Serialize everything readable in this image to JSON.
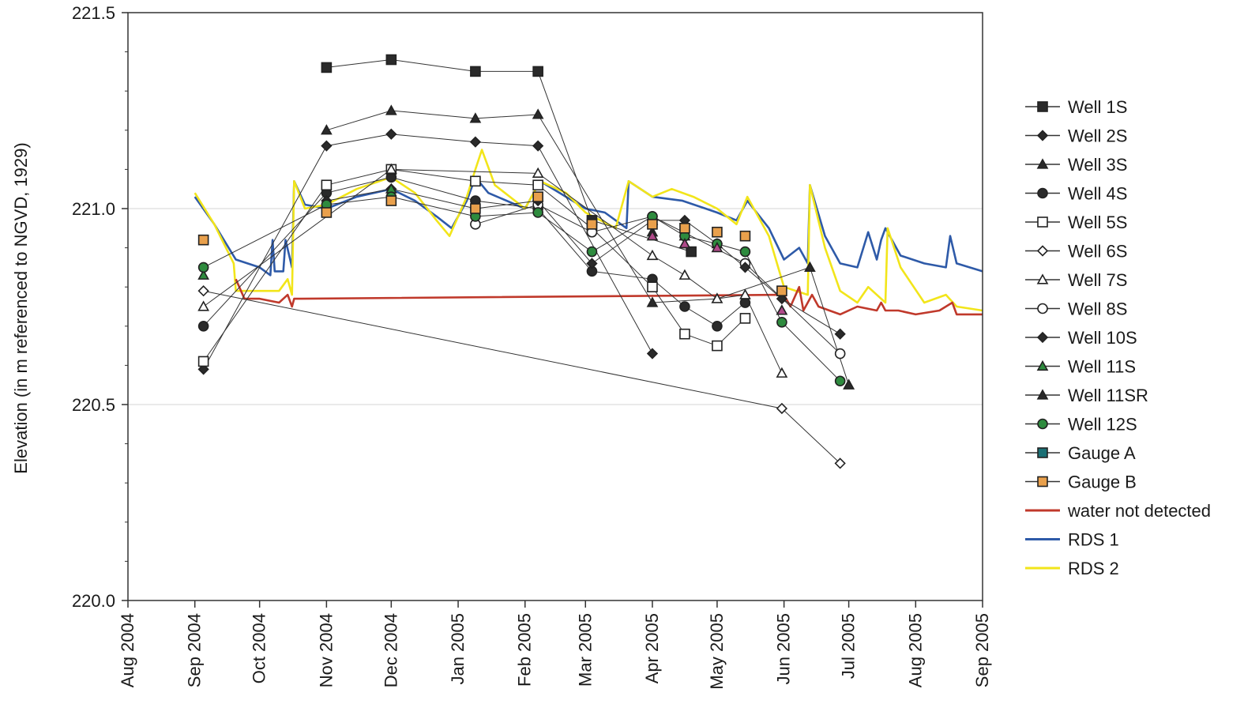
{
  "chart_data": {
    "type": "line",
    "title": "",
    "xlabel": "",
    "ylabel": "Elevation (in m referenced to NGVD, 1929)",
    "xlim": [
      "2004-08-01",
      "2005-09-01"
    ],
    "ylim": [
      220.0,
      221.5
    ],
    "y_ticks": [
      "220.0",
      "220.5",
      "221.0",
      "221.5"
    ],
    "x_ticks": [
      "Aug 2004",
      "Sep 2004",
      "Oct 2004",
      "Nov 2004",
      "Dec 2004",
      "Jan 2005",
      "Feb 2005",
      "Mar 2005",
      "Apr 2005",
      "May 2005",
      "Jun 2005",
      "Jul 2005",
      "Aug 2005",
      "Sep 2005"
    ],
    "x_tick_dates": [
      "2004-08-01",
      "2004-09-01",
      "2004-10-01",
      "2004-11-01",
      "2004-12-01",
      "2005-01-01",
      "2005-02-01",
      "2005-03-01",
      "2005-04-01",
      "2005-05-01",
      "2005-06-01",
      "2005-07-01",
      "2005-08-01",
      "2005-09-01"
    ],
    "grid": "horizontal",
    "legend": "right",
    "well_series": [
      {
        "name": "Well 1S",
        "marker": "square",
        "fill": "#2a2a2a",
        "connected": true,
        "points": [
          [
            "2004-11-01",
            221.36
          ],
          [
            "2004-12-01",
            221.38
          ],
          [
            "2005-01-09",
            221.35
          ],
          [
            "2005-02-07",
            221.35
          ],
          [
            "2005-03-04",
            220.97
          ],
          [
            "2005-04-19",
            220.89
          ]
        ]
      },
      {
        "name": "Well 2S",
        "marker": "diamond",
        "fill": "#2a2a2a",
        "connected": true,
        "points": [
          [
            "2004-09-05",
            220.59
          ],
          [
            "2004-11-01",
            221.16
          ],
          [
            "2004-12-01",
            221.19
          ],
          [
            "2005-01-09",
            221.17
          ],
          [
            "2005-02-07",
            221.16
          ],
          [
            "2005-04-01",
            220.63
          ]
        ]
      },
      {
        "name": "Well 3S",
        "marker": "triangle",
        "fill": "#2a2a2a",
        "connected": true,
        "points": [
          [
            "2004-11-01",
            221.2
          ],
          [
            "2004-12-01",
            221.25
          ],
          [
            "2005-01-09",
            221.23
          ],
          [
            "2005-02-07",
            221.24
          ],
          [
            "2005-04-01",
            220.76
          ],
          [
            "2005-05-01",
            220.77
          ],
          [
            "2005-06-13",
            220.85
          ],
          [
            "2005-07-01",
            220.55
          ]
        ]
      },
      {
        "name": "Well 4S",
        "marker": "circle",
        "fill": "#2a2a2a",
        "connected": true,
        "points": [
          [
            "2004-09-05",
            220.7
          ],
          [
            "2004-11-01",
            221.04
          ],
          [
            "2004-12-01",
            221.08
          ],
          [
            "2005-01-09",
            221.02
          ],
          [
            "2005-02-07",
            221.0
          ],
          [
            "2005-03-04",
            220.84
          ],
          [
            "2005-04-01",
            220.82
          ],
          [
            "2005-04-16",
            220.75
          ],
          [
            "2005-05-01",
            220.7
          ],
          [
            "2005-05-14",
            220.76
          ]
        ]
      },
      {
        "name": "Well 5S",
        "marker": "square",
        "fill": "#ffffff",
        "connected": true,
        "points": [
          [
            "2004-09-05",
            220.61
          ],
          [
            "2004-11-01",
            221.06
          ],
          [
            "2004-12-01",
            221.1
          ],
          [
            "2005-01-09",
            221.07
          ],
          [
            "2005-02-07",
            221.06
          ],
          [
            "2005-03-04",
            220.95
          ],
          [
            "2005-04-01",
            220.8
          ],
          [
            "2005-04-16",
            220.68
          ],
          [
            "2005-05-01",
            220.65
          ],
          [
            "2005-05-14",
            220.72
          ]
        ]
      },
      {
        "name": "Well 6S",
        "marker": "diamond",
        "fill": "#ffffff",
        "connected": true,
        "points": [
          [
            "2004-09-05",
            220.79
          ],
          [
            "2005-05-31",
            220.49
          ],
          [
            "2005-06-27",
            220.35
          ]
        ]
      },
      {
        "name": "Well 7S",
        "marker": "triangle",
        "fill": "#ffffff",
        "connected": true,
        "points": [
          [
            "2004-09-05",
            220.75
          ],
          [
            "2004-12-01",
            221.1
          ],
          [
            "2005-02-07",
            221.09
          ],
          [
            "2005-04-01",
            220.88
          ],
          [
            "2005-04-16",
            220.83
          ],
          [
            "2005-05-01",
            220.77
          ],
          [
            "2005-05-14",
            220.78
          ],
          [
            "2005-05-31",
            220.58
          ]
        ]
      },
      {
        "name": "Well 8S",
        "marker": "circle",
        "fill": "#ffffff",
        "connected": true,
        "points": [
          [
            "2005-01-09",
            220.96
          ],
          [
            "2005-02-07",
            221.01
          ],
          [
            "2005-03-04",
            220.94
          ],
          [
            "2005-04-01",
            220.98
          ],
          [
            "2005-05-14",
            220.86
          ],
          [
            "2005-06-27",
            220.63
          ]
        ]
      },
      {
        "name": "Well 10S",
        "marker": "diamond",
        "fill": "#2a2a2a",
        "connected": true,
        "points": [
          [
            "2004-11-01",
            221.02
          ],
          [
            "2004-12-01",
            221.05
          ],
          [
            "2005-01-09",
            221.0
          ],
          [
            "2005-02-07",
            221.02
          ],
          [
            "2005-03-04",
            220.86
          ],
          [
            "2005-04-01",
            220.97
          ],
          [
            "2005-04-16",
            220.97
          ],
          [
            "2005-05-01",
            220.91
          ],
          [
            "2005-05-14",
            220.85
          ],
          [
            "2005-05-31",
            220.77
          ],
          [
            "2005-06-27",
            220.68
          ]
        ]
      },
      {
        "name": "Well 11S",
        "marker": "triangle",
        "fill": "#2e8b3e",
        "connected": false,
        "points": [
          [
            "2004-09-05",
            220.83
          ],
          [
            "2004-12-01",
            221.05
          ],
          [
            "2005-04-01",
            220.97
          ],
          [
            "2005-04-16",
            220.93
          ]
        ]
      },
      {
        "name": "Well 11SR",
        "marker": "triangle",
        "fill": "#2a2a2a",
        "connected": false,
        "points": [
          [
            "2005-04-01",
            220.94
          ],
          [
            "2005-04-16",
            220.91
          ],
          [
            "2005-05-01",
            220.91
          ],
          [
            "2005-05-31",
            220.74
          ],
          [
            "2005-07-01",
            220.55
          ]
        ]
      },
      {
        "name": "Well 12S",
        "marker": "circle",
        "fill": "#2e8b3e",
        "connected": true,
        "points": [
          [
            "2004-09-05",
            220.85
          ],
          [
            "2004-11-01",
            221.01
          ],
          [
            "2004-12-01",
            221.03
          ],
          [
            "2005-01-09",
            220.98
          ],
          [
            "2005-02-07",
            220.99
          ],
          [
            "2005-03-04",
            220.89
          ],
          [
            "2005-04-01",
            220.98
          ],
          [
            "2005-04-16",
            220.93
          ],
          [
            "2005-05-01",
            220.91
          ],
          [
            "2005-05-14",
            220.89
          ],
          [
            "2005-05-31",
            220.71
          ],
          [
            "2005-06-27",
            220.56
          ]
        ]
      },
      {
        "name": "Gauge A",
        "marker": "square",
        "fill": "#1a6f74",
        "connected": false,
        "points": []
      },
      {
        "name": "Gauge B",
        "marker": "square",
        "fill": "#e9a04c",
        "connected": false,
        "points": [
          [
            "2004-09-05",
            220.92
          ],
          [
            "2004-11-01",
            220.99
          ],
          [
            "2004-12-01",
            221.02
          ],
          [
            "2005-01-09",
            221.0
          ],
          [
            "2005-02-07",
            221.03
          ],
          [
            "2005-03-04",
            220.96
          ],
          [
            "2005-04-01",
            220.96
          ],
          [
            "2005-04-16",
            220.95
          ],
          [
            "2005-05-01",
            220.94
          ],
          [
            "2005-05-14",
            220.93
          ],
          [
            "2005-05-31",
            220.79
          ]
        ]
      }
    ],
    "extra_markers": [
      {
        "date": "2005-04-01",
        "value": 220.93,
        "fill": "#b04a8a"
      },
      {
        "date": "2005-04-16",
        "value": 220.91,
        "fill": "#b04a8a"
      },
      {
        "date": "2005-05-01",
        "value": 220.9,
        "fill": "#b04a8a"
      },
      {
        "date": "2005-05-31",
        "value": 220.74,
        "fill": "#b04a8a"
      }
    ],
    "line_series": [
      {
        "name": "water not detected",
        "color": "#c0392b",
        "points": [
          [
            "2004-09-20",
            220.82
          ],
          [
            "2004-09-24",
            220.77
          ],
          [
            "2004-10-01",
            220.77
          ],
          [
            "2004-10-10",
            220.76
          ],
          [
            "2004-10-14",
            220.78
          ],
          [
            "2004-10-16",
            220.75
          ],
          [
            "2004-10-17",
            220.77
          ],
          [
            "2005-06-01",
            220.78
          ],
          [
            "2005-06-04",
            220.75
          ],
          [
            "2005-06-08",
            220.8
          ],
          [
            "2005-06-10",
            220.74
          ],
          [
            "2005-06-14",
            220.78
          ],
          [
            "2005-06-17",
            220.75
          ],
          [
            "2005-06-27",
            220.73
          ],
          [
            "2005-07-05",
            220.75
          ],
          [
            "2005-07-14",
            220.74
          ],
          [
            "2005-07-16",
            220.76
          ],
          [
            "2005-07-18",
            220.74
          ],
          [
            "2005-07-24",
            220.74
          ],
          [
            "2005-08-01",
            220.73
          ],
          [
            "2005-08-12",
            220.74
          ],
          [
            "2005-08-18",
            220.76
          ],
          [
            "2005-08-20",
            220.73
          ],
          [
            "2005-09-01",
            220.73
          ]
        ]
      },
      {
        "name": "RDS 1",
        "color": "#2e5aa8",
        "points": [
          [
            "2004-09-01",
            221.03
          ],
          [
            "2004-09-10",
            220.96
          ],
          [
            "2004-09-20",
            220.87
          ],
          [
            "2004-10-01",
            220.85
          ],
          [
            "2004-10-06",
            220.83
          ],
          [
            "2004-10-07",
            220.92
          ],
          [
            "2004-10-08",
            220.84
          ],
          [
            "2004-10-12",
            220.84
          ],
          [
            "2004-10-13",
            220.92
          ],
          [
            "2004-10-16",
            220.85
          ],
          [
            "2004-10-17",
            221.07
          ],
          [
            "2004-10-22",
            221.01
          ],
          [
            "2004-11-01",
            221.0
          ],
          [
            "2004-11-15",
            221.03
          ],
          [
            "2004-12-01",
            221.05
          ],
          [
            "2004-12-12",
            221.02
          ],
          [
            "2004-12-22",
            220.98
          ],
          [
            "2004-12-29",
            220.95
          ],
          [
            "2005-01-05",
            221.02
          ],
          [
            "2005-01-09",
            221.08
          ],
          [
            "2005-01-15",
            221.04
          ],
          [
            "2005-02-01",
            221.0
          ],
          [
            "2005-02-08",
            221.07
          ],
          [
            "2005-02-20",
            221.03
          ],
          [
            "2005-03-01",
            221.0
          ],
          [
            "2005-03-10",
            220.99
          ],
          [
            "2005-03-20",
            220.95
          ],
          [
            "2005-03-21",
            221.07
          ],
          [
            "2005-04-01",
            221.03
          ],
          [
            "2005-04-15",
            221.02
          ],
          [
            "2005-05-01",
            220.99
          ],
          [
            "2005-05-10",
            220.97
          ],
          [
            "2005-05-15",
            221.02
          ],
          [
            "2005-05-25",
            220.95
          ],
          [
            "2005-06-01",
            220.87
          ],
          [
            "2005-06-08",
            220.9
          ],
          [
            "2005-06-12",
            220.86
          ],
          [
            "2005-06-13",
            221.06
          ],
          [
            "2005-06-20",
            220.93
          ],
          [
            "2005-06-27",
            220.86
          ],
          [
            "2005-07-05",
            220.85
          ],
          [
            "2005-07-10",
            220.94
          ],
          [
            "2005-07-14",
            220.87
          ],
          [
            "2005-07-16",
            220.92
          ],
          [
            "2005-07-18",
            220.95
          ],
          [
            "2005-07-25",
            220.88
          ],
          [
            "2005-08-05",
            220.86
          ],
          [
            "2005-08-15",
            220.85
          ],
          [
            "2005-08-17",
            220.93
          ],
          [
            "2005-08-20",
            220.86
          ],
          [
            "2005-09-01",
            220.84
          ]
        ]
      },
      {
        "name": "RDS 2",
        "color": "#f2e51a",
        "points": [
          [
            "2004-09-01",
            221.04
          ],
          [
            "2004-09-10",
            220.96
          ],
          [
            "2004-09-19",
            220.86
          ],
          [
            "2004-09-20",
            220.79
          ],
          [
            "2004-10-10",
            220.79
          ],
          [
            "2004-10-14",
            220.82
          ],
          [
            "2004-10-16",
            220.78
          ],
          [
            "2004-10-17",
            221.07
          ],
          [
            "2004-10-22",
            221.0
          ],
          [
            "2004-11-01",
            221.01
          ],
          [
            "2004-11-15",
            221.05
          ],
          [
            "2004-12-01",
            221.08
          ],
          [
            "2004-12-12",
            221.04
          ],
          [
            "2004-12-22",
            220.97
          ],
          [
            "2004-12-28",
            220.93
          ],
          [
            "2005-01-05",
            221.03
          ],
          [
            "2005-01-09",
            221.1
          ],
          [
            "2005-01-12",
            221.15
          ],
          [
            "2005-01-18",
            221.06
          ],
          [
            "2005-02-01",
            221.0
          ],
          [
            "2005-02-08",
            221.07
          ],
          [
            "2005-02-20",
            221.04
          ],
          [
            "2005-03-01",
            220.99
          ],
          [
            "2005-03-15",
            220.95
          ],
          [
            "2005-03-21",
            221.07
          ],
          [
            "2005-04-01",
            221.03
          ],
          [
            "2005-04-10",
            221.05
          ],
          [
            "2005-04-20",
            221.03
          ],
          [
            "2005-05-01",
            221.0
          ],
          [
            "2005-05-10",
            220.96
          ],
          [
            "2005-05-15",
            221.03
          ],
          [
            "2005-05-25",
            220.93
          ],
          [
            "2005-06-01",
            220.8
          ],
          [
            "2005-06-12",
            220.78
          ],
          [
            "2005-06-13",
            221.06
          ],
          [
            "2005-06-20",
            220.9
          ],
          [
            "2005-06-27",
            220.79
          ],
          [
            "2005-07-05",
            220.76
          ],
          [
            "2005-07-10",
            220.8
          ],
          [
            "2005-07-18",
            220.76
          ],
          [
            "2005-07-19",
            220.95
          ],
          [
            "2005-07-25",
            220.85
          ],
          [
            "2005-08-05",
            220.76
          ],
          [
            "2005-08-15",
            220.78
          ],
          [
            "2005-08-20",
            220.75
          ],
          [
            "2005-09-01",
            220.74
          ]
        ]
      }
    ],
    "legend_order": [
      "Well 1S",
      "Well 2S",
      "Well 3S",
      "Well 4S",
      "Well 5S",
      "Well 6S",
      "Well 7S",
      "Well 8S",
      "Well 10S",
      "Well 11S",
      "Well 11SR",
      "Well 12S",
      "Gauge A",
      "Gauge B",
      "water not detected",
      "RDS 1",
      "RDS 2"
    ]
  }
}
